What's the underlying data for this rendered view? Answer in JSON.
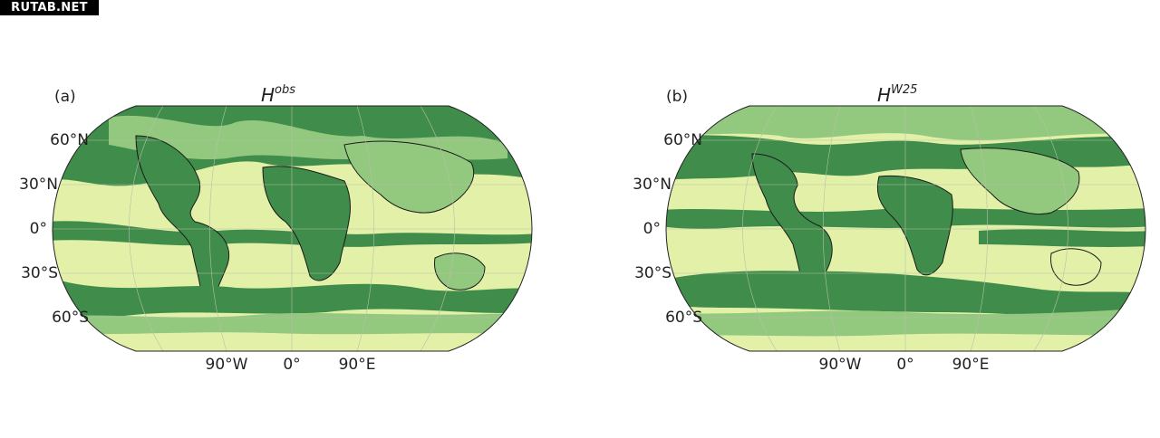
{
  "watermark": "RUTAB.NET",
  "colors": {
    "low": "#e3f1a8",
    "mid": "#93c97f",
    "high": "#3f8c4b",
    "coast": "#1a1a1a",
    "grid": "#b9bfa8"
  },
  "panels": [
    {
      "letter": "(a)",
      "title_base": "H",
      "title_sup": "obs",
      "lat_labels": [
        "60°N",
        "30°N",
        "0°",
        "30°S",
        "60°S"
      ],
      "lon_labels": [
        "90°W",
        "0°",
        "90°E"
      ]
    },
    {
      "letter": "(b)",
      "title_base": "H",
      "title_sup": "W25",
      "lat_labels": [
        "60°N",
        "30°N",
        "0°",
        "30°S",
        "60°S"
      ],
      "lon_labels": [
        "90°W",
        "0°",
        "90°E"
      ]
    }
  ]
}
